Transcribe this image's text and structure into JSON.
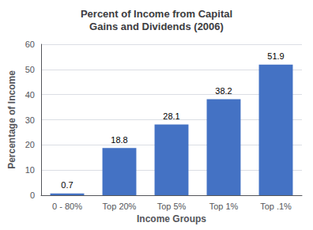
{
  "chart_data": {
    "type": "bar",
    "title": "Percent of Income from Capital\nGains and Dividends (2006)",
    "xlabel": "Income Groups",
    "ylabel": "Percentage of Income",
    "categories": [
      "0 - 80%",
      "Top 20%",
      "Top 5%",
      "Top 1%",
      "Top .1%"
    ],
    "values": [
      0.7,
      18.8,
      28.1,
      38.2,
      51.9
    ],
    "color": "#4472C4",
    "ylim": [
      0,
      60
    ],
    "yticks": [
      0,
      10,
      20,
      30,
      40,
      50,
      60
    ],
    "grid": true,
    "data_labels": true
  }
}
